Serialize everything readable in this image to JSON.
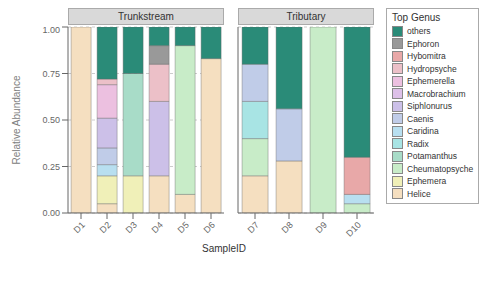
{
  "chart_data": [
    {
      "type": "bar",
      "title": "Trunkstream",
      "ylabel": "Relative Abundance",
      "xlabel": "SampleID",
      "stacked": true,
      "grid": true,
      "categories": [
        "D1",
        "D2",
        "D3",
        "D4",
        "D5",
        "D6"
      ],
      "ylim": [
        0,
        1.0
      ],
      "yticks": [
        {
          "value": 0.0,
          "label": "0.00"
        },
        {
          "value": 0.25,
          "label": "0.25"
        },
        {
          "value": 0.5,
          "label": "0.50"
        },
        {
          "value": 0.75,
          "label": "0.75"
        },
        {
          "value": 1.0,
          "label": "1.00"
        }
      ],
      "series": [
        {
          "name": "Helice",
          "color": "#f5dfc0",
          "values": [
            1.0,
            0.05,
            0.0,
            0.2,
            0.1,
            0.83
          ]
        },
        {
          "name": "Ephemera",
          "color": "#f0f0b8",
          "values": [
            0.0,
            0.15,
            0.2,
            0.0,
            0.0,
            0.0
          ]
        },
        {
          "name": "Cheumatopsyche",
          "color": "#c8ecc8",
          "values": [
            0.0,
            0.0,
            0.0,
            0.0,
            0.8,
            0.0
          ]
        },
        {
          "name": "Potamanthus",
          "color": "#a8dcc8",
          "values": [
            0.0,
            0.0,
            0.55,
            0.0,
            0.0,
            0.0
          ]
        },
        {
          "name": "Radix",
          "color": "#a8e4e4",
          "values": [
            0.0,
            0.0,
            0.0,
            0.0,
            0.0,
            0.0
          ]
        },
        {
          "name": "Caridina",
          "color": "#b8dff0",
          "values": [
            0.0,
            0.06,
            0.0,
            0.0,
            0.0,
            0.0
          ]
        },
        {
          "name": "Caenis",
          "color": "#c0cce8",
          "values": [
            0.0,
            0.09,
            0.0,
            0.0,
            0.0,
            0.0
          ]
        },
        {
          "name": "Siphlonurus",
          "color": "#ccc0e8",
          "values": [
            0.0,
            0.16,
            0.0,
            0.4,
            0.0,
            0.0
          ]
        },
        {
          "name": "Macrobrachium",
          "color": "#ddc0e8",
          "values": [
            0.0,
            0.0,
            0.0,
            0.0,
            0.0,
            0.0
          ]
        },
        {
          "name": "Ephemerella",
          "color": "#ecc0e0",
          "values": [
            0.0,
            0.18,
            0.0,
            0.0,
            0.0,
            0.0
          ]
        },
        {
          "name": "Hydropsyche",
          "color": "#ecc0c8",
          "values": [
            0.0,
            0.03,
            0.0,
            0.2,
            0.0,
            0.0
          ]
        },
        {
          "name": "Hybomitra",
          "color": "#e8a8a8",
          "values": [
            0.0,
            0.0,
            0.0,
            0.0,
            0.0,
            0.0
          ]
        },
        {
          "name": "Ephoron",
          "color": "#999999",
          "values": [
            0.0,
            0.0,
            0.0,
            0.1,
            0.0,
            0.0
          ]
        },
        {
          "name": "others",
          "color": "#2a8b78",
          "values": [
            0.0,
            0.28,
            0.25,
            0.1,
            0.1,
            0.17
          ]
        }
      ]
    },
    {
      "type": "bar",
      "title": "Tributary",
      "stacked": true,
      "grid": true,
      "tick_labels": "x",
      "legend": "right",
      "legend_title": "Top Genus",
      "categories": [
        "D7",
        "D8",
        "D9",
        "D10"
      ],
      "ylim": [
        0,
        1.0
      ],
      "yticks": [
        {
          "value": 0.0,
          "label": "0.00"
        },
        {
          "value": 0.25,
          "label": "0.25"
        },
        {
          "value": 0.5,
          "label": "0.50"
        },
        {
          "value": 0.75,
          "label": "0.75"
        },
        {
          "value": 1.0,
          "label": "1.00"
        }
      ],
      "series": [
        {
          "name": "Helice",
          "color": "#f5dfc0",
          "values": [
            0.2,
            0.28,
            0.0,
            0.0
          ]
        },
        {
          "name": "Ephemera",
          "color": "#f0f0b8",
          "values": [
            0.0,
            0.0,
            0.0,
            0.0
          ]
        },
        {
          "name": "Cheumatopsyche",
          "color": "#c8ecc8",
          "values": [
            0.2,
            0.0,
            1.0,
            0.05
          ]
        },
        {
          "name": "Potamanthus",
          "color": "#a8dcc8",
          "values": [
            0.0,
            0.0,
            0.0,
            0.0
          ]
        },
        {
          "name": "Radix",
          "color": "#a8e4e4",
          "values": [
            0.2,
            0.0,
            0.0,
            0.0
          ]
        },
        {
          "name": "Caridina",
          "color": "#b8dff0",
          "values": [
            0.0,
            0.0,
            0.0,
            0.05
          ]
        },
        {
          "name": "Caenis",
          "color": "#c0cce8",
          "values": [
            0.2,
            0.28,
            0.0,
            0.0
          ]
        },
        {
          "name": "Siphlonurus",
          "color": "#ccc0e8",
          "values": [
            0.0,
            0.0,
            0.0,
            0.0
          ]
        },
        {
          "name": "Macrobrachium",
          "color": "#ddc0e8",
          "values": [
            0.0,
            0.0,
            0.0,
            0.0
          ]
        },
        {
          "name": "Ephemerella",
          "color": "#ecc0e0",
          "values": [
            0.0,
            0.0,
            0.0,
            0.0
          ]
        },
        {
          "name": "Hydropsyche",
          "color": "#ecc0c8",
          "values": [
            0.0,
            0.0,
            0.0,
            0.0
          ]
        },
        {
          "name": "Hybomitra",
          "color": "#e8a8a8",
          "values": [
            0.0,
            0.0,
            0.0,
            0.2
          ]
        },
        {
          "name": "Ephoron",
          "color": "#999999",
          "values": [
            0.0,
            0.0,
            0.0,
            0.0
          ]
        },
        {
          "name": "others",
          "color": "#2a8b78",
          "values": [
            0.2,
            0.44,
            0.0,
            0.7
          ]
        }
      ]
    }
  ]
}
